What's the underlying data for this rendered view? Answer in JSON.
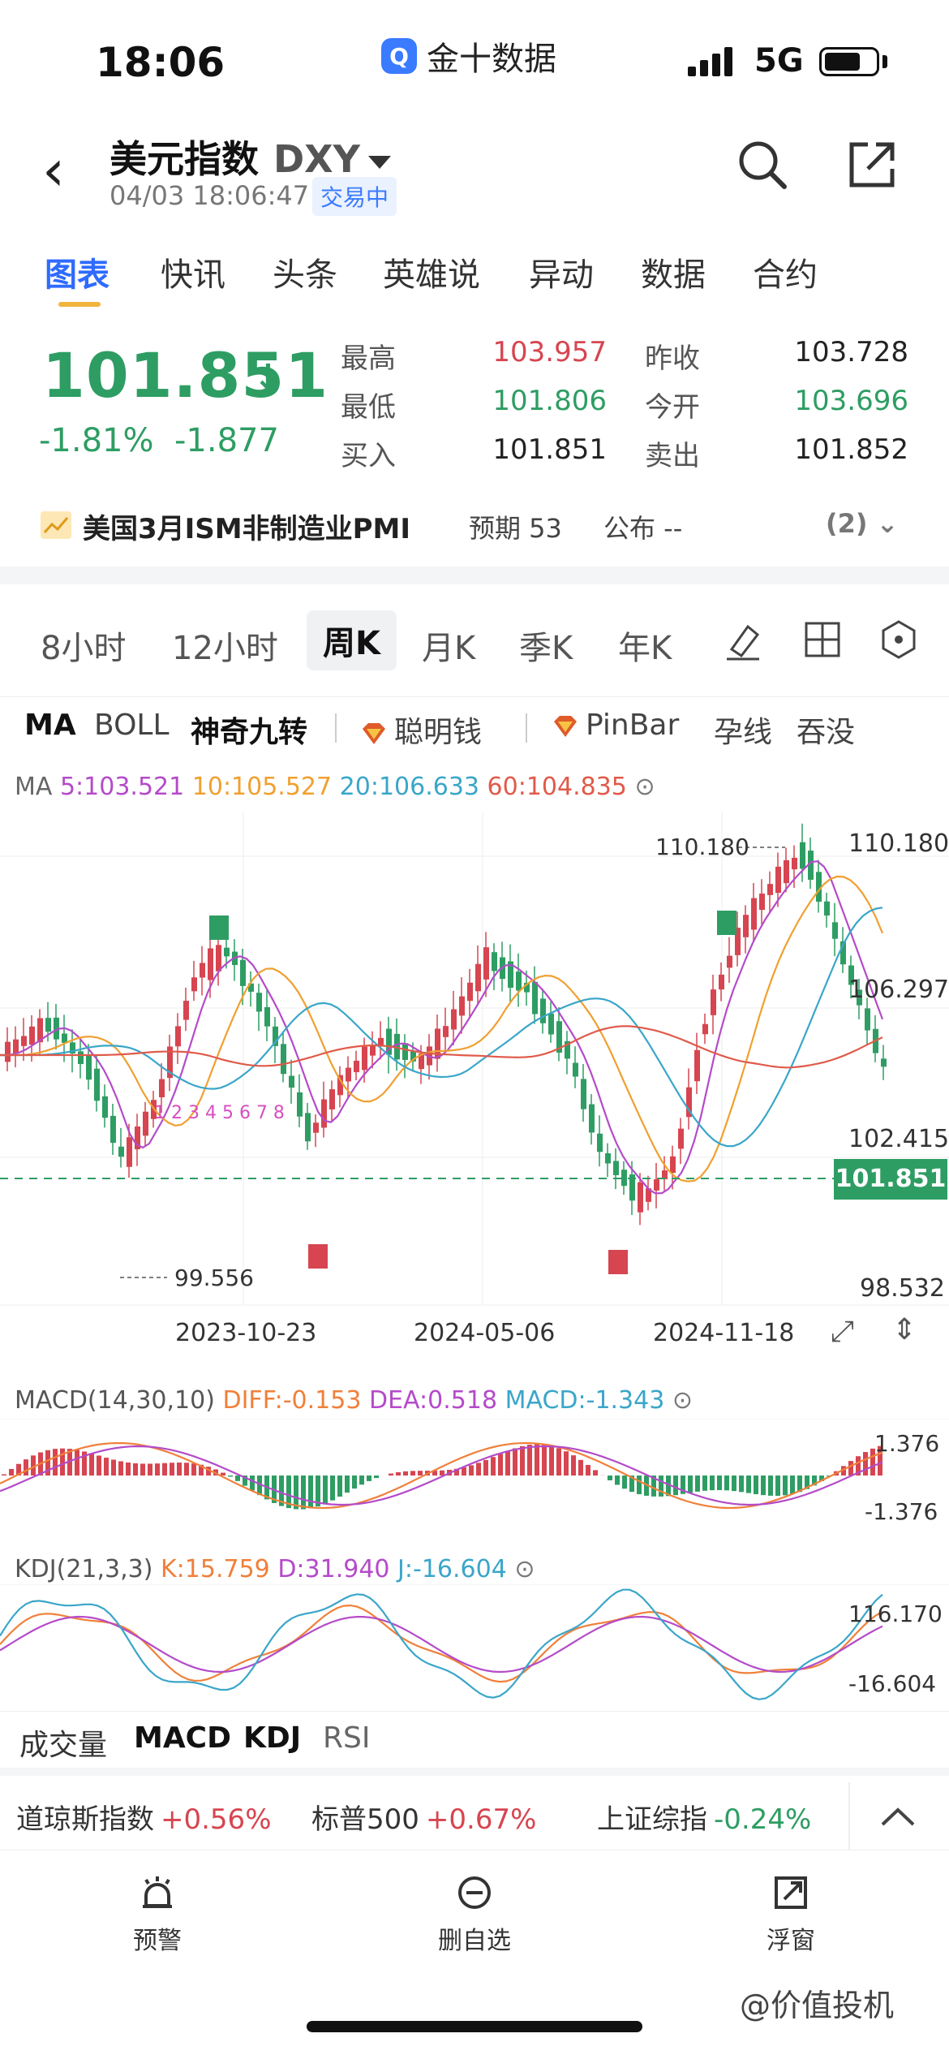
{
  "status": {
    "time": "18:06",
    "app_name": "金十数据",
    "app_logo": "Q",
    "network": "5G"
  },
  "header": {
    "title": "美元指数",
    "code": "DXY",
    "datetime": "04/03 18:06:47",
    "trade_status": "交易中"
  },
  "tabs": [
    "图表",
    "快讯",
    "头条",
    "英雄说",
    "异动",
    "数据",
    "合约"
  ],
  "quote": {
    "price": "101.851",
    "arrow": "↓",
    "change_pct": "-1.81%",
    "change": "-1.877",
    "high_label": "最高",
    "high": "103.957",
    "low_label": "最低",
    "low": "101.806",
    "buy_label": "买入",
    "buy": "101.851",
    "prev_close_label": "昨收",
    "prev_close": "103.728",
    "open_label": "今开",
    "open": "103.696",
    "sell_label": "卖出",
    "sell": "101.852"
  },
  "event": {
    "title": "美国3月ISM非制造业PMI",
    "expected": "预期 53",
    "published": "公布 --",
    "count": "(2)"
  },
  "periods": [
    "8小时",
    "12小时",
    "周K",
    "月K",
    "季K",
    "年K"
  ],
  "indicators": {
    "ma": "MA",
    "boll": "BOLL",
    "magic9": "神奇九转",
    "smart": "聪明钱",
    "pinbar": "PinBar",
    "harami": "孕线",
    "engulf": "吞没"
  },
  "ma_legend": {
    "label": "MA",
    "ma5": "5:103.521",
    "ma10": "10:105.527",
    "ma20": "20:106.633",
    "ma60": "60:104.835"
  },
  "main_chart": {
    "y_labels": {
      "top": "110.180",
      "mid": "106.297",
      "low": "102.415",
      "bottom": "98.532"
    },
    "high_marker": "110.180",
    "low_marker": "99.556",
    "current_price": "101.851",
    "x_labels": [
      "2023-10-23",
      "2024-05-06",
      "2024-11-18"
    ],
    "colors": {
      "up": "#d64550",
      "down": "#2e9d63",
      "ma5": "#b44bc9",
      "ma10": "#f0a030",
      "ma20": "#3aa6c9",
      "ma60": "#e05a4a"
    }
  },
  "macd": {
    "label": "MACD(14,30,10)",
    "diff": "DIFF:-0.153",
    "dea": "DEA:0.518",
    "macd": "MACD:-1.343",
    "y_top": "1.376",
    "y_bottom": "-1.376"
  },
  "kdj": {
    "label": "KDJ(21,3,3)",
    "k": "K:15.759",
    "d": "D:31.940",
    "j": "J:-16.604",
    "y_top": "116.170",
    "y_bottom": "-16.604"
  },
  "sub_tabs": [
    "成交量",
    "MACD",
    "KDJ",
    "RSI"
  ],
  "tickers": [
    {
      "name": "道琼斯指数",
      "value": "+0.56%"
    },
    {
      "name": "标普500",
      "value": "+0.67%"
    },
    {
      "name": "上证综指",
      "value": "-0.24%"
    }
  ],
  "nav": {
    "alert": "预警",
    "remove_fav": "删自选",
    "float": "浮窗"
  },
  "watermark": "@价值投机"
}
